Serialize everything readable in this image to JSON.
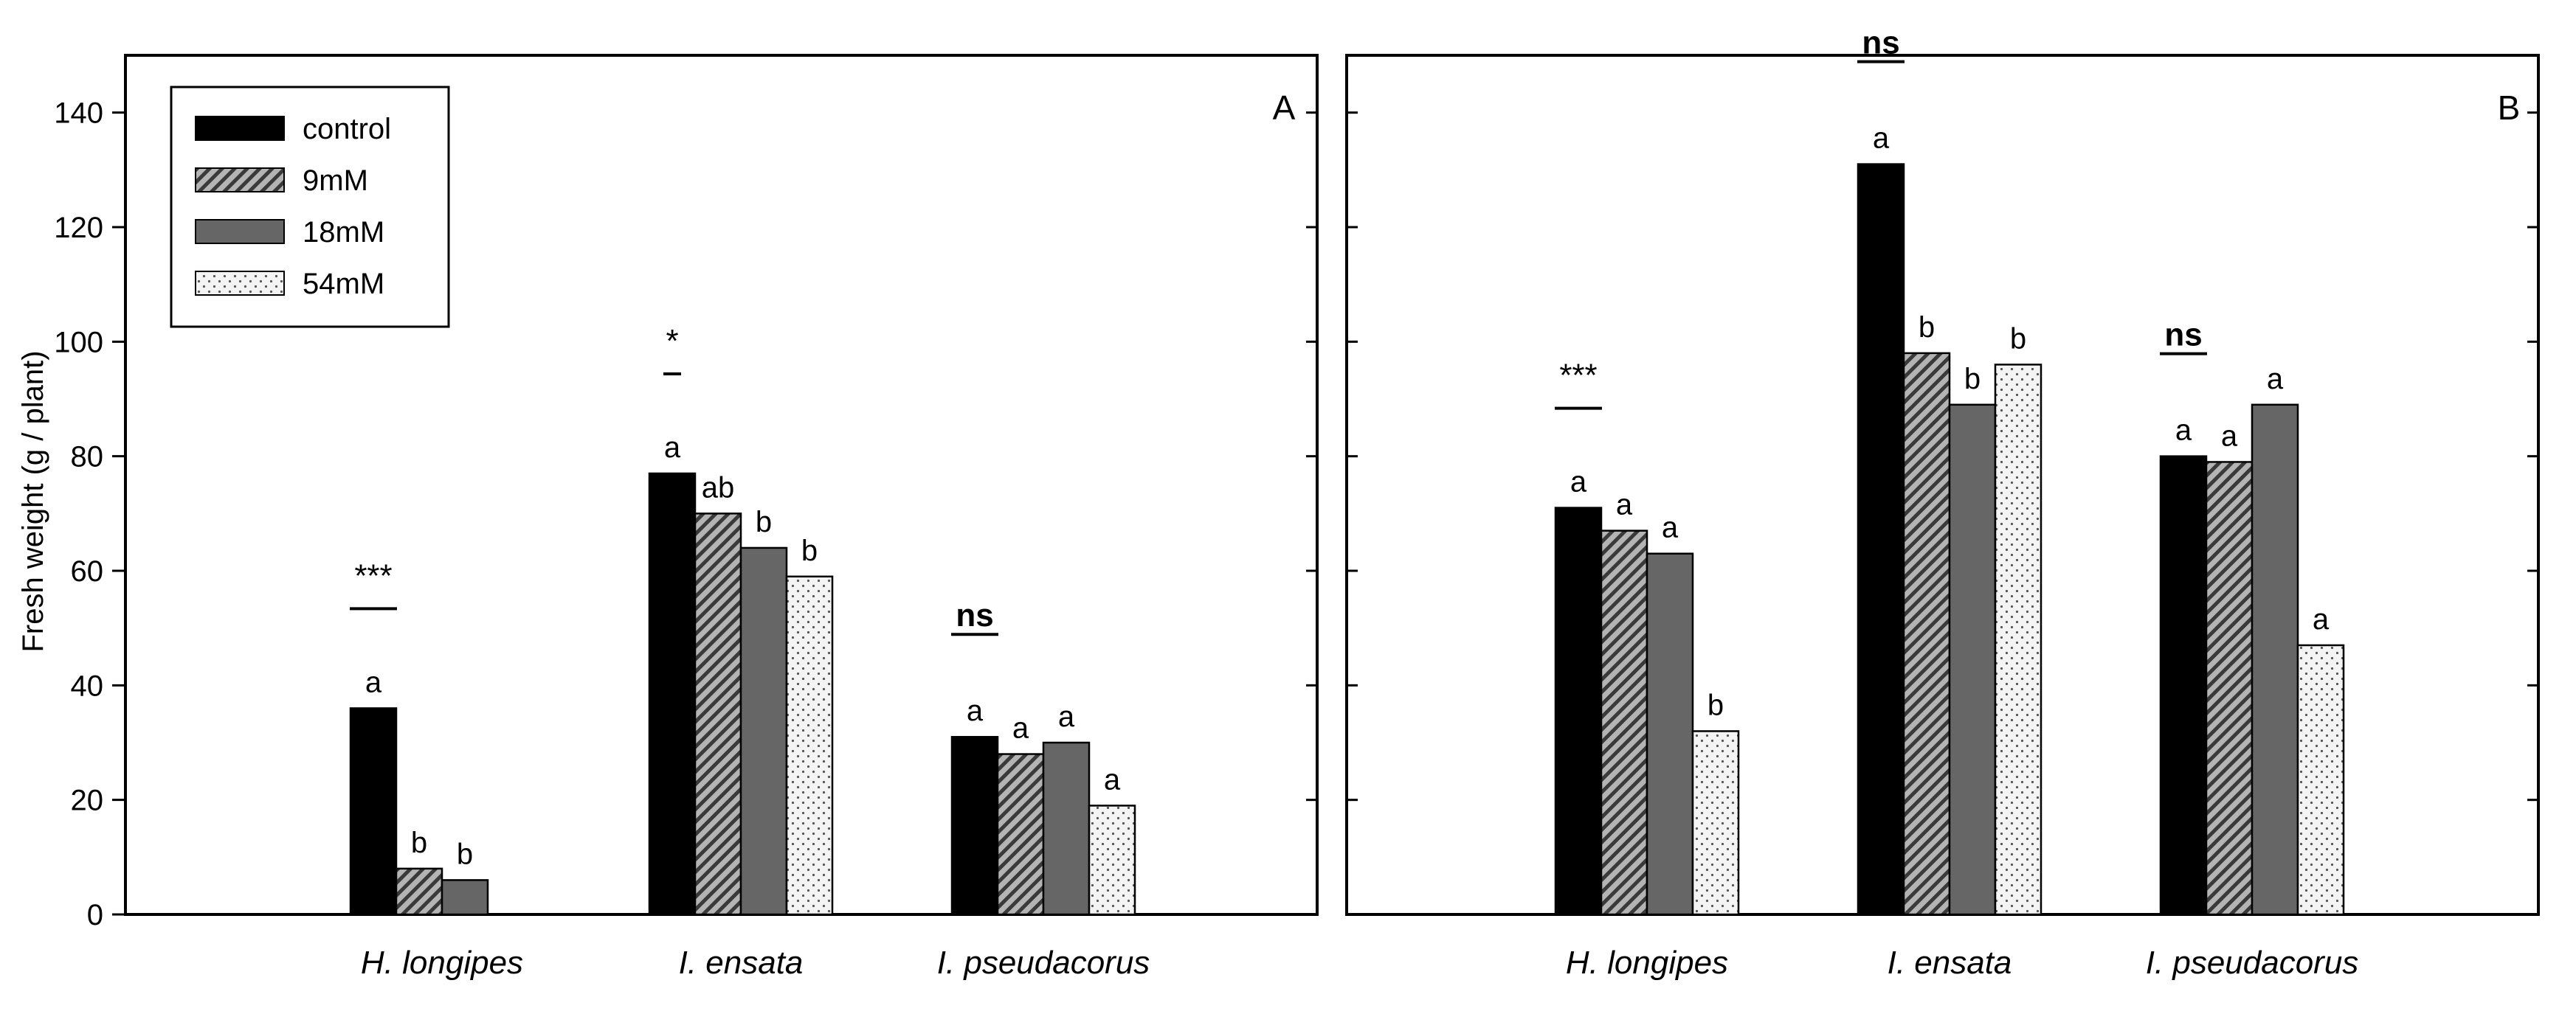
{
  "chart_data": {
    "type": "bar",
    "ylabel": "Fresh weight (g / plant)",
    "ylim": [
      0,
      150
    ],
    "yticks": [
      0,
      20,
      40,
      60,
      80,
      100,
      120,
      140
    ],
    "categories": [
      "H. longipes",
      "I. ensata",
      "I. pseudacorus"
    ],
    "legend": {
      "position": "top-left",
      "entries": [
        {
          "name": "control",
          "pattern": "solid-black"
        },
        {
          "name": "9mM",
          "pattern": "diagonal-hatch"
        },
        {
          "name": "18mM",
          "pattern": "solid-gray"
        },
        {
          "name": "54mM",
          "pattern": "dotted"
        }
      ]
    },
    "panels": [
      {
        "panel_label": "A",
        "groups": [
          {
            "category": "H. longipes",
            "significance": "***",
            "bars": [
              {
                "series": "control",
                "value": 36,
                "letter": "a"
              },
              {
                "series": "9mM",
                "value": 8,
                "letter": "b"
              },
              {
                "series": "18mM",
                "value": 6,
                "letter": "b"
              },
              {
                "series": "54mM",
                "value": null,
                "letter": ""
              }
            ]
          },
          {
            "category": "I. ensata",
            "significance": "*",
            "bars": [
              {
                "series": "control",
                "value": 77,
                "letter": "a"
              },
              {
                "series": "9mM",
                "value": 70,
                "letter": "ab"
              },
              {
                "series": "18mM",
                "value": 64,
                "letter": "b"
              },
              {
                "series": "54mM",
                "value": 59,
                "letter": "b"
              }
            ]
          },
          {
            "category": "I. pseudacorus",
            "significance": "ns",
            "bars": [
              {
                "series": "control",
                "value": 31,
                "letter": "a"
              },
              {
                "series": "9mM",
                "value": 28,
                "letter": "a"
              },
              {
                "series": "18mM",
                "value": 30,
                "letter": "a"
              },
              {
                "series": "54mM",
                "value": 19,
                "letter": "a"
              }
            ]
          }
        ]
      },
      {
        "panel_label": "B",
        "groups": [
          {
            "category": "H. longipes",
            "significance": "***",
            "bars": [
              {
                "series": "control",
                "value": 71,
                "letter": "a"
              },
              {
                "series": "9mM",
                "value": 67,
                "letter": "a"
              },
              {
                "series": "18mM",
                "value": 63,
                "letter": "a"
              },
              {
                "series": "54mM",
                "value": 32,
                "letter": "b"
              }
            ]
          },
          {
            "category": "I. ensata",
            "significance": "ns",
            "bars": [
              {
                "series": "control",
                "value": 131,
                "letter": "a"
              },
              {
                "series": "9mM",
                "value": 98,
                "letter": "b"
              },
              {
                "series": "18mM",
                "value": 89,
                "letter": "b"
              },
              {
                "series": "54mM",
                "value": 96,
                "letter": "b"
              }
            ]
          },
          {
            "category": "I. pseudacorus",
            "significance": "ns",
            "bars": [
              {
                "series": "control",
                "value": 80,
                "letter": "a"
              },
              {
                "series": "9mM",
                "value": 79,
                "letter": "a"
              },
              {
                "series": "18mM",
                "value": 89,
                "letter": "a"
              },
              {
                "series": "54mM",
                "value": 47,
                "letter": "a"
              }
            ]
          }
        ]
      }
    ]
  }
}
